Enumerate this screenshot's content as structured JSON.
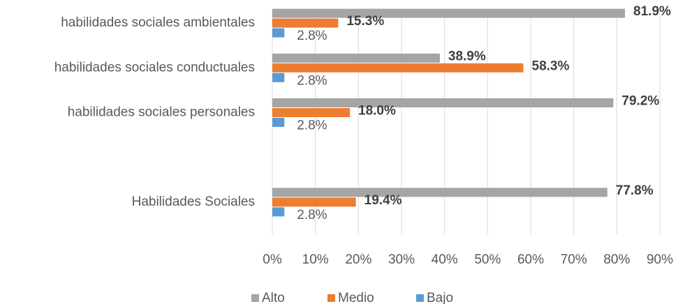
{
  "chart_data": {
    "type": "bar",
    "orientation": "horizontal",
    "categories": [
      "habilidades sociales ambientales",
      "habilidades sociales conductuales",
      "habilidades sociales personales",
      null,
      "Habilidades Sociales"
    ],
    "series": [
      {
        "name": "Alto",
        "color": "#a5a5a5",
        "values": [
          81.9,
          38.9,
          79.2,
          null,
          77.8
        ],
        "value_labels": [
          "81.9%",
          "38.9%",
          "79.2%",
          null,
          "77.8%"
        ]
      },
      {
        "name": "Medio",
        "color": "#ed7d31",
        "values": [
          15.3,
          58.3,
          18.0,
          null,
          19.4
        ],
        "value_labels": [
          "15.3%",
          "58.3%",
          "18.0%",
          null,
          "19.4%"
        ]
      },
      {
        "name": "Bajo",
        "color": "#5b9bd5",
        "values": [
          2.8,
          2.8,
          2.8,
          null,
          2.8
        ],
        "value_labels": [
          "2.8%",
          "2.8%",
          "2.8%",
          null,
          "2.8%"
        ]
      }
    ],
    "xlim": [
      0,
      90
    ],
    "xticks": [
      {
        "value": 0,
        "label": "0%"
      },
      {
        "value": 10,
        "label": "10%"
      },
      {
        "value": 20,
        "label": "20%"
      },
      {
        "value": 30,
        "label": "30%"
      },
      {
        "value": 40,
        "label": "40%"
      },
      {
        "value": 50,
        "label": "50%"
      },
      {
        "value": 60,
        "label": "60%"
      },
      {
        "value": 70,
        "label": "70%"
      },
      {
        "value": 80,
        "label": "80%"
      },
      {
        "value": 90,
        "label": "90%"
      }
    ],
    "grid": true,
    "legend": "bottom"
  }
}
